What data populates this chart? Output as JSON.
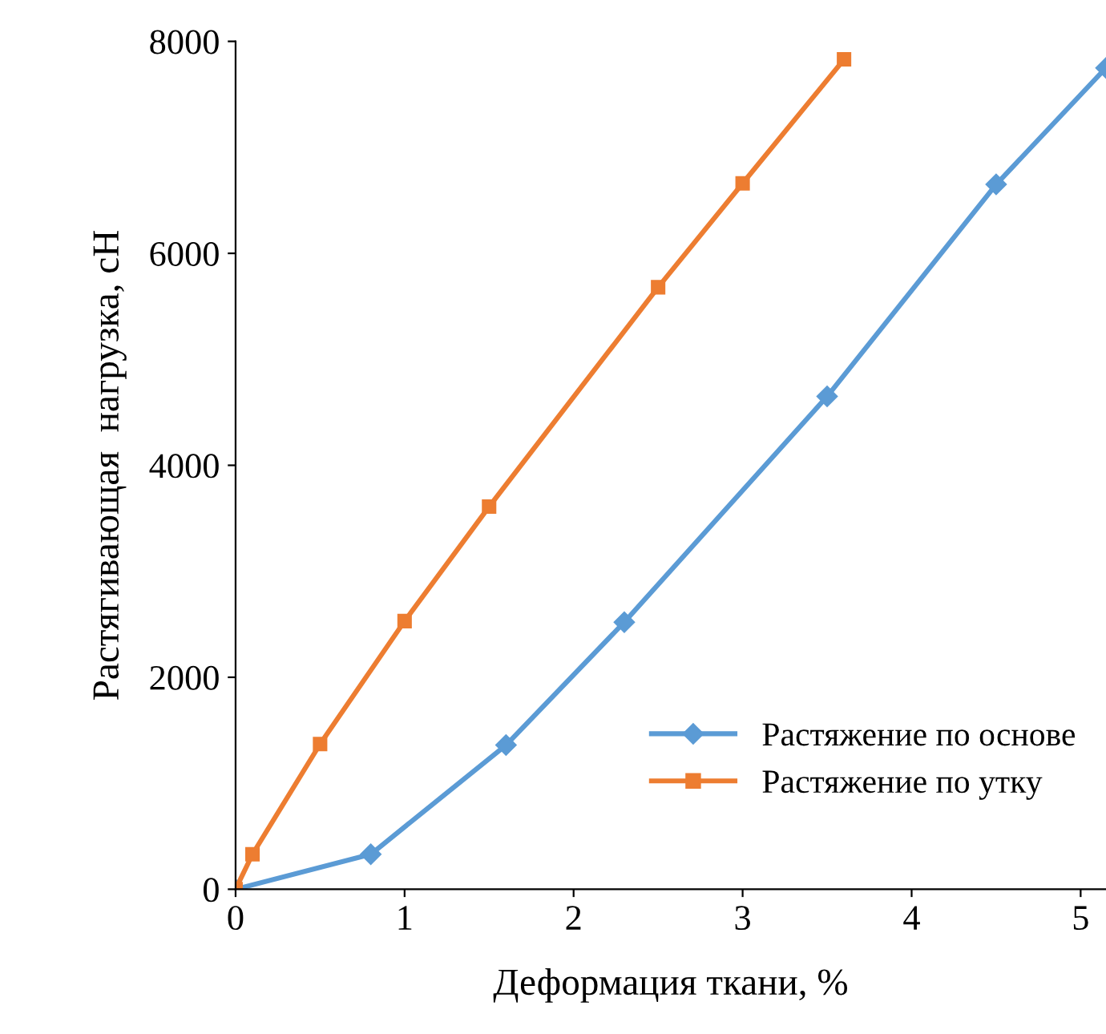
{
  "chart_data": {
    "type": "line",
    "xlabel": "Деформация ткани, %",
    "ylabel": "Растягивающая  нагрузка, сН",
    "xlim": [
      0,
      5.15
    ],
    "ylim": [
      0,
      8000
    ],
    "xticks": [
      0,
      1,
      2,
      3,
      4,
      5
    ],
    "yticks": [
      0,
      2000,
      4000,
      6000,
      8000
    ],
    "grid": false,
    "legend": "lower right",
    "line_style": "solid",
    "series": [
      {
        "name": "Растяжение по основе",
        "color": "#5b9bd5",
        "marker": "diamond",
        "x": [
          0,
          0.8,
          1.6,
          2.3,
          3.5,
          4.5,
          5.15
        ],
        "values": [
          0,
          330,
          1360,
          2520,
          4650,
          6650,
          7750
        ]
      },
      {
        "name": "Растяжение по утку",
        "color": "#ed7d31",
        "marker": "square",
        "x": [
          0,
          0.1,
          0.5,
          1,
          1.5,
          2.5,
          3,
          3.6
        ],
        "values": [
          0,
          330,
          1370,
          2530,
          3610,
          5680,
          6660,
          7830
        ]
      }
    ]
  }
}
